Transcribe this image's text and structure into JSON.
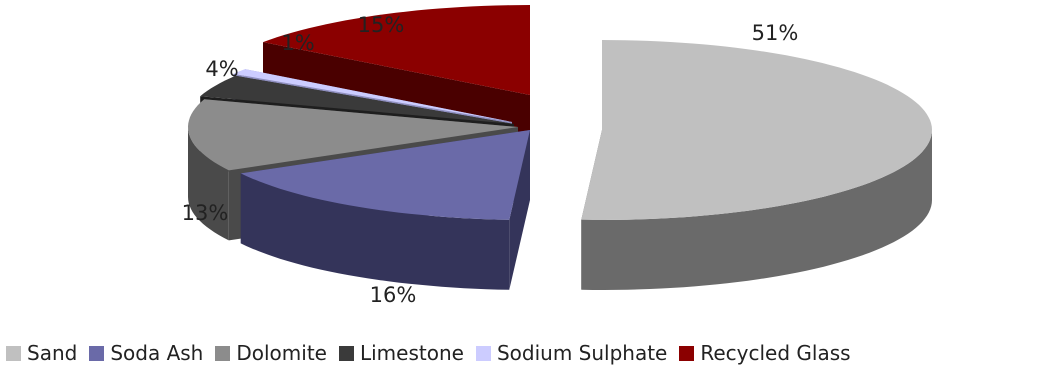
{
  "chart_data": {
    "type": "pie",
    "style": "3d-exploded",
    "legend_position": "bottom",
    "slices": [
      {
        "label": "Sand",
        "value": 51,
        "value_label": "51%",
        "color": "#c0c0c0",
        "side_color": "#6a6a6a"
      },
      {
        "label": "Soda Ash",
        "value": 16,
        "value_label": "16%",
        "color": "#6a6aa8",
        "side_color": "#34345a"
      },
      {
        "label": "Dolomite",
        "value": 13,
        "value_label": "13%",
        "color": "#8c8c8c",
        "side_color": "#4a4a4a"
      },
      {
        "label": "Limestone",
        "value": 4,
        "value_label": "4%",
        "color": "#3a3a3a",
        "side_color": "#1e1e1e"
      },
      {
        "label": "Sodium Sulphate",
        "value": 1,
        "value_label": "1%",
        "color": "#ccccff",
        "side_color": "#9090c0"
      },
      {
        "label": "Recycled Glass",
        "value": 15,
        "value_label": "15%",
        "color": "#8b0000",
        "side_color": "#4a0000"
      }
    ]
  }
}
